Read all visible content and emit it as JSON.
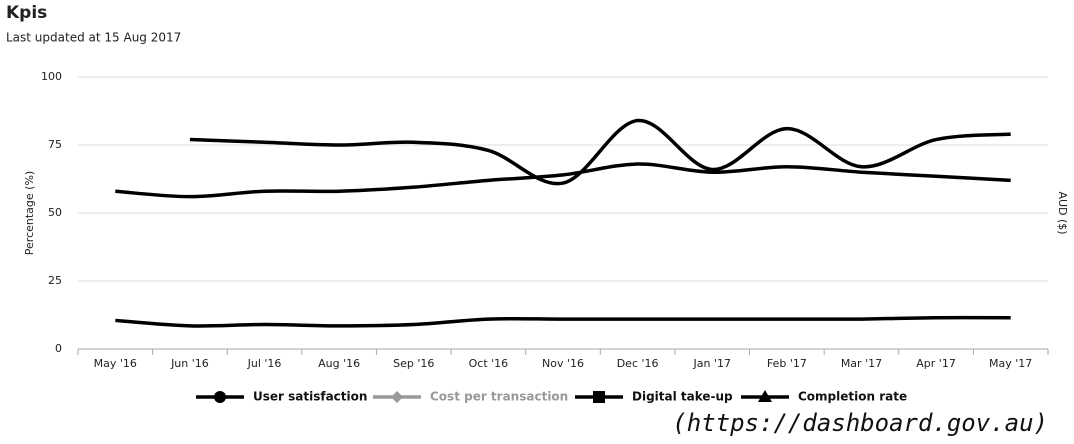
{
  "chart_data": {
    "type": "line",
    "title": "Kpis",
    "subtitle": "Last updated at 15 Aug 2017",
    "y_label": "Percentage (%)",
    "y2_label": "AUD ($)",
    "annotation": "(https://dashboard.gov.au)",
    "categories": [
      "May '16",
      "Jun '16",
      "Jul '16",
      "Aug '16",
      "Sep '16",
      "Oct '16",
      "Nov '16",
      "Dec '16",
      "Jan '17",
      "Feb '17",
      "Mar '17",
      "Apr '17",
      "May '17"
    ],
    "series": [
      {
        "name": "User satisfaction",
        "color": "#000000",
        "marker": "circle",
        "visible": true,
        "values": [
          null,
          77,
          76,
          75,
          76,
          73,
          61,
          84,
          66,
          81,
          67,
          77,
          79
        ]
      },
      {
        "name": "Cost per transaction",
        "color": "#999999",
        "marker": "diamond",
        "visible": false,
        "values": [
          null,
          null,
          null,
          null,
          null,
          null,
          null,
          null,
          null,
          null,
          null,
          null,
          null
        ]
      },
      {
        "name": "Digital take-up",
        "color": "#000000",
        "marker": "square",
        "visible": true,
        "values": [
          58,
          56,
          58,
          58,
          59.5,
          62,
          64,
          68,
          65,
          67,
          65,
          63.5,
          62
        ]
      },
      {
        "name": "Completion rate",
        "color": "#000000",
        "marker": "triangle",
        "visible": true,
        "values": [
          10.5,
          8.5,
          9,
          8.5,
          9,
          11,
          11,
          11,
          11,
          11,
          11,
          11.5,
          11.5
        ]
      }
    ],
    "ylim": [
      0,
      100
    ],
    "yticks": [
      0,
      25,
      50,
      75,
      100
    ],
    "grid": true,
    "legend": "bottom"
  }
}
